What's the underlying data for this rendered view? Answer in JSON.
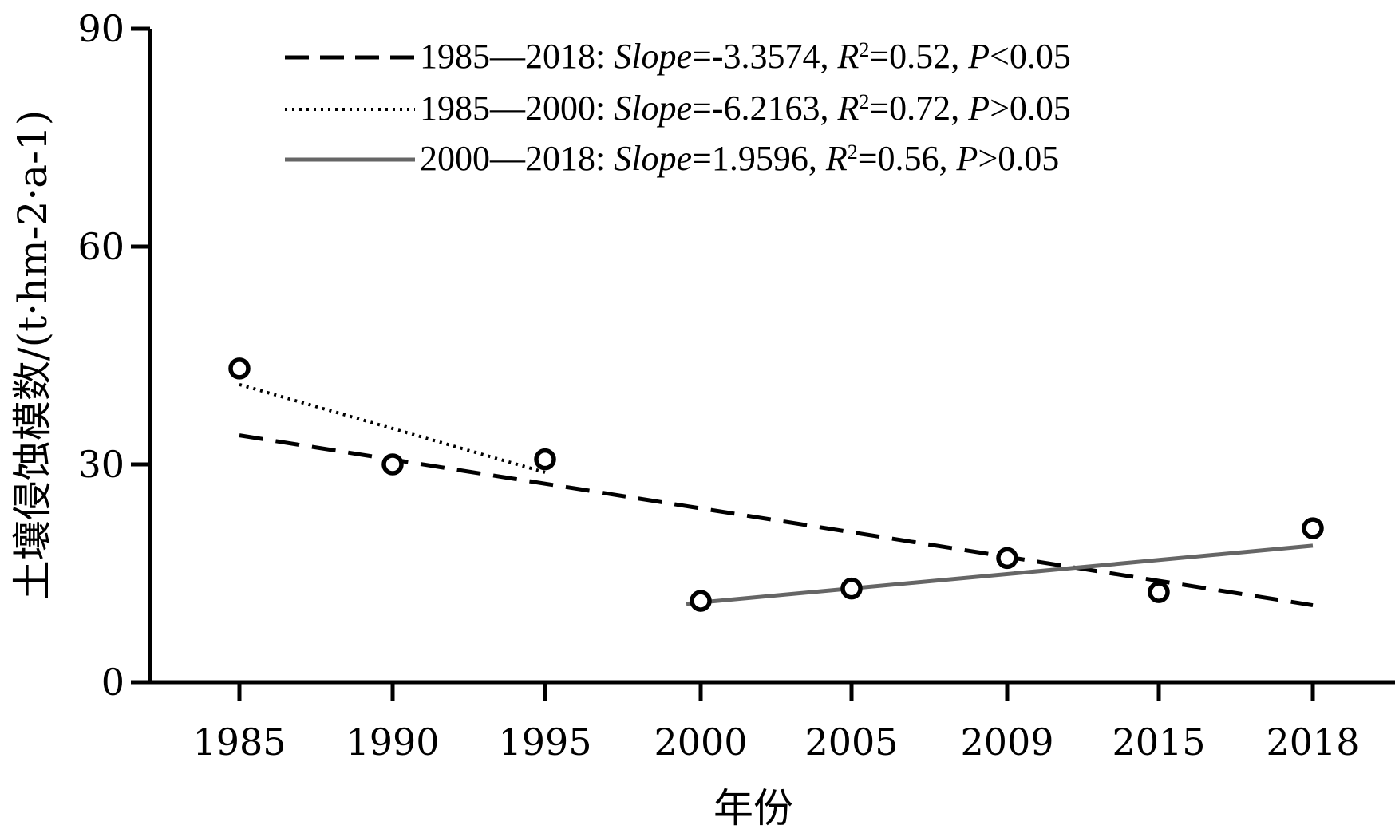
{
  "chart_data": {
    "type": "scatter",
    "xlabel": "年份",
    "ylabel": "土壤侵蚀模数/(t·hm-2·a-1)",
    "ylim": [
      0,
      90
    ],
    "yticks": [
      "0",
      "30",
      "60",
      "90"
    ],
    "categories": [
      "1985",
      "1990",
      "1995",
      "2000",
      "2005",
      "2009",
      "2015",
      "2018"
    ],
    "series": [
      {
        "values": [
          43.2,
          30.0,
          30.7,
          11.2,
          12.9,
          17.1,
          12.4,
          21.2
        ]
      }
    ],
    "trendlines": [
      {
        "from": "1985",
        "to": "2018",
        "style": "dashed",
        "color": "#000000",
        "start_value": 34.0,
        "end_value": 10.6,
        "period": "1985—2018",
        "slope_label": "Slope",
        "slope": "=-3.3574",
        "r_label": "R",
        "r_sup": "2",
        "r2": "=0.52",
        "p_label": "P",
        "p": "<0.05"
      },
      {
        "from": "1985",
        "to": "1995",
        "style": "dotted",
        "color": "#000000",
        "start_value": 41.0,
        "end_value": 28.9,
        "period": "1985—2000",
        "slope_label": "Slope",
        "slope": "=-6.2163",
        "r_label": "R",
        "r_sup": "2",
        "r2": "=0.72",
        "p_label": "P",
        "p": ">0.05"
      },
      {
        "from": "2000",
        "to": "2018",
        "style": "solid",
        "color": "#666666",
        "start_value": 10.8,
        "end_value": 18.8,
        "period": "2000—2018",
        "slope_label": "Slope",
        "slope": "=1.9596",
        "r_label": "R",
        "r_sup": "2",
        "r2": "=0.56",
        "p_label": "P",
        "p": ">0.05"
      }
    ],
    "legend_position": "top",
    "grid": false
  }
}
